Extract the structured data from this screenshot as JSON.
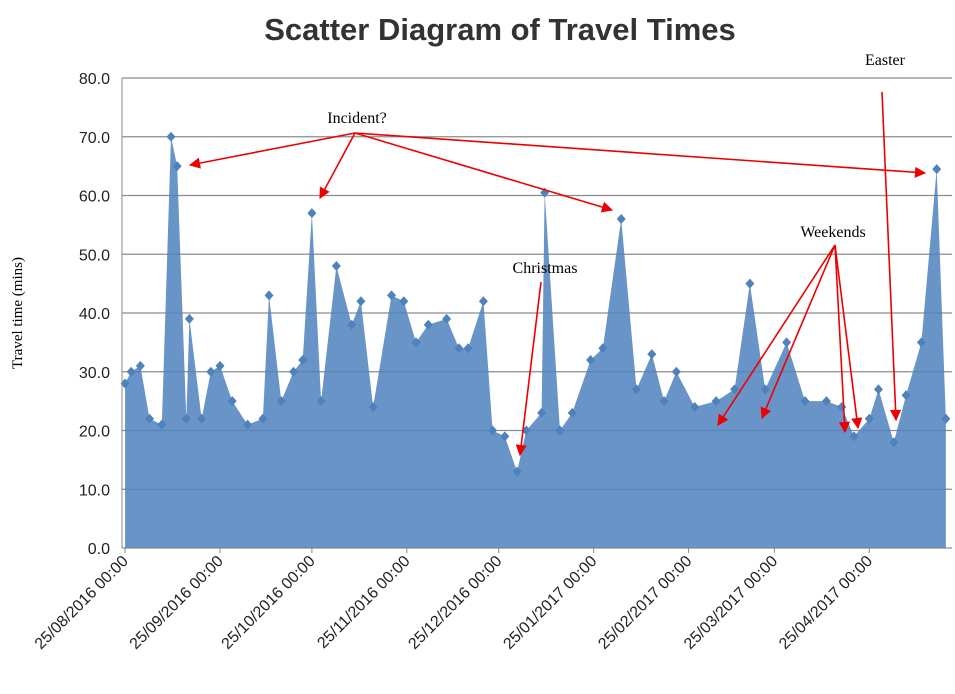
{
  "chart_data": {
    "type": "scatter",
    "title": "Scatter Diagram of Travel Times",
    "y_label": "Travel time (mins)",
    "color": "#4f81bd",
    "grid": true,
    "ylim": [
      0,
      80
    ],
    "yticks": [
      {
        "value": 0,
        "label": "0.0"
      },
      {
        "value": 10,
        "label": "10.0"
      },
      {
        "value": 20,
        "label": "20.0"
      },
      {
        "value": 30,
        "label": "30.0"
      },
      {
        "value": 40,
        "label": "40.0"
      },
      {
        "value": 50,
        "label": "50.0"
      },
      {
        "value": 60,
        "label": "60.0"
      },
      {
        "value": 70,
        "label": "70.0"
      },
      {
        "value": 80,
        "label": "80.0"
      }
    ],
    "xlim": [
      "24/08/2016 00:00",
      "22/05/2017 00:00"
    ],
    "xticks": [
      "25/08/2016 00:00",
      "25/09/2016 00:00",
      "25/10/2016 00:00",
      "25/11/2016 00:00",
      "25/12/2016 00:00",
      "25/01/2017 00:00",
      "25/02/2017 00:00",
      "25/03/2017 00:00",
      "25/04/2017 00:00"
    ],
    "x": [
      "25/08/2016 00:00",
      "27/08/2016 00:00",
      "30/08/2016 00:00",
      "02/09/2016 00:00",
      "06/09/2016 00:00",
      "09/09/2016 00:00",
      "11/09/2016 00:00",
      "14/09/2016 00:00",
      "15/09/2016 00:00",
      "19/09/2016 00:00",
      "22/09/2016 00:00",
      "25/09/2016 00:00",
      "29/09/2016 00:00",
      "04/10/2016 00:00",
      "09/10/2016 00:00",
      "11/10/2016 00:00",
      "15/10/2016 00:00",
      "19/10/2016 00:00",
      "22/10/2016 00:00",
      "25/10/2016 00:00",
      "28/10/2016 00:00",
      "02/11/2016 00:00",
      "07/11/2016 00:00",
      "10/11/2016 00:00",
      "14/11/2016 00:00",
      "20/11/2016 00:00",
      "24/11/2016 00:00",
      "28/11/2016 00:00",
      "02/12/2016 00:00",
      "08/12/2016 00:00",
      "12/12/2016 00:00",
      "15/12/2016 00:00",
      "20/12/2016 00:00",
      "23/12/2016 00:00",
      "27/12/2016 00:00",
      "31/12/2016 00:00",
      "03/01/2017 00:00",
      "08/01/2017 00:00",
      "09/01/2017 00:00",
      "14/01/2017 00:00",
      "18/01/2017 00:00",
      "24/01/2017 00:00",
      "28/01/2017 00:00",
      "03/02/2017 00:00",
      "08/02/2017 00:00",
      "13/02/2017 00:00",
      "17/02/2017 00:00",
      "21/02/2017 00:00",
      "27/02/2017 00:00",
      "06/03/2017 00:00",
      "12/03/2017 00:00",
      "17/03/2017 00:00",
      "22/03/2017 00:00",
      "29/03/2017 00:00",
      "04/04/2017 00:00",
      "11/04/2017 00:00",
      "16/04/2017 00:00",
      "20/04/2017 00:00",
      "25/04/2017 00:00",
      "28/04/2017 00:00",
      "03/05/2017 00:00",
      "07/05/2017 00:00",
      "12/05/2017 00:00",
      "17/05/2017 00:00",
      "20/05/2017 00:00"
    ],
    "values": [
      28,
      30,
      31,
      22,
      21,
      70,
      65,
      22,
      39,
      22,
      30,
      31,
      25,
      21,
      22,
      43,
      25,
      30,
      32,
      57,
      25,
      48,
      38,
      42,
      24,
      43,
      42,
      35,
      38,
      39,
      34,
      34,
      42,
      20,
      19,
      13,
      20,
      23,
      60.5,
      20,
      23,
      32,
      34,
      56,
      27,
      33,
      25,
      30,
      24,
      25,
      27,
      45,
      27,
      35,
      25,
      25,
      24,
      19,
      22,
      27,
      18,
      26,
      35,
      64.5,
      22
    ],
    "annotations": [
      "Incident?",
      "Christmas",
      "Weekends",
      "Easter"
    ]
  }
}
